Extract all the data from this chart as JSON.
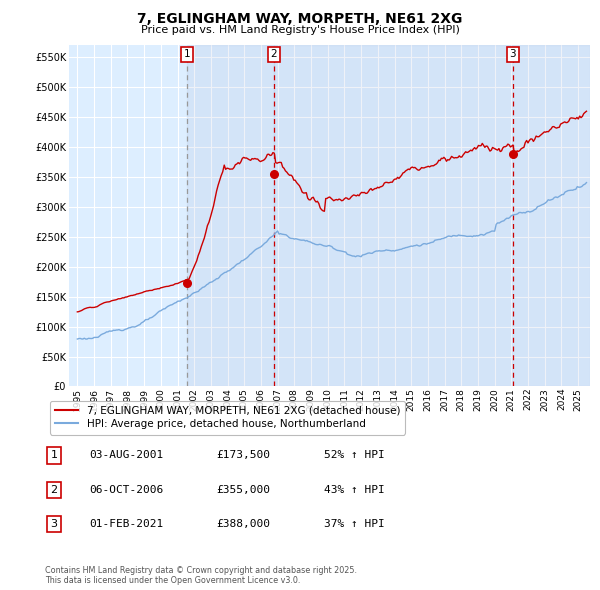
{
  "title": "7, EGLINGHAM WAY, MORPETH, NE61 2XG",
  "subtitle": "Price paid vs. HM Land Registry's House Price Index (HPI)",
  "legend_red": "7, EGLINGHAM WAY, MORPETH, NE61 2XG (detached house)",
  "legend_blue": "HPI: Average price, detached house, Northumberland",
  "transaction_1_date": "03-AUG-2001",
  "transaction_1_price": "£173,500",
  "transaction_1_hpi": "52% ↑ HPI",
  "transaction_1_x": 2001.59,
  "transaction_1_y": 173500,
  "transaction_2_date": "06-OCT-2006",
  "transaction_2_price": "£355,000",
  "transaction_2_hpi": "43% ↑ HPI",
  "transaction_2_x": 2006.77,
  "transaction_2_y": 355000,
  "transaction_3_date": "01-FEB-2021",
  "transaction_3_price": "£388,000",
  "transaction_3_hpi": "37% ↑ HPI",
  "transaction_3_x": 2021.08,
  "transaction_3_y": 388000,
  "red_color": "#cc0000",
  "blue_color": "#7aaadd",
  "bg_color": "#ddeeff",
  "grid_color": "#ffffff",
  "footer": "Contains HM Land Registry data © Crown copyright and database right 2025.\nThis data is licensed under the Open Government Licence v3.0.",
  "ylim": [
    0,
    570000
  ],
  "xlim_start": 1994.5,
  "xlim_end": 2025.7
}
